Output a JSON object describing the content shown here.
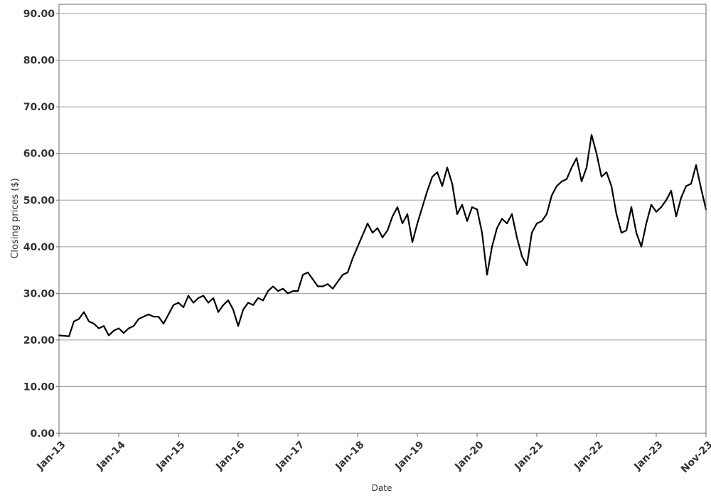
{
  "chart_data": {
    "type": "line",
    "title": "",
    "xlabel": "Date",
    "ylabel": "Closing prices ($)",
    "ylim": [
      0,
      92
    ],
    "xlim": [
      "2013-01",
      "2023-11"
    ],
    "grid": true,
    "y_ticks": [
      {
        "value": 0,
        "label": "0.00"
      },
      {
        "value": 10,
        "label": "10.00"
      },
      {
        "value": 20,
        "label": "20.00"
      },
      {
        "value": 30,
        "label": "30.00"
      },
      {
        "value": 40,
        "label": "40.00"
      },
      {
        "value": 50,
        "label": "50.00"
      },
      {
        "value": 60,
        "label": "60.00"
      },
      {
        "value": 70,
        "label": "70.00"
      },
      {
        "value": 80,
        "label": "80.00"
      },
      {
        "value": 90,
        "label": "90.00"
      }
    ],
    "x_ticks": [
      {
        "value": "2013-01",
        "label": "Jan-13"
      },
      {
        "value": "2014-01",
        "label": "Jan-14"
      },
      {
        "value": "2015-01",
        "label": "Jan-15"
      },
      {
        "value": "2016-01",
        "label": "Jan-16"
      },
      {
        "value": "2017-01",
        "label": "Jan-17"
      },
      {
        "value": "2018-01",
        "label": "Jan-18"
      },
      {
        "value": "2019-01",
        "label": "Jan-19"
      },
      {
        "value": "2020-01",
        "label": "Jan-20"
      },
      {
        "value": "2021-01",
        "label": "Jan-21"
      },
      {
        "value": "2022-01",
        "label": "Jan-22"
      },
      {
        "value": "2023-01",
        "label": "Jan-23"
      },
      {
        "value": "2023-11",
        "label": "Nov-23"
      }
    ],
    "series": [
      {
        "color": "#000000",
        "points": [
          [
            "2013-01",
            21.0
          ],
          [
            "2013-03",
            20.8
          ],
          [
            "2013-04",
            24.0
          ],
          [
            "2013-05",
            24.5
          ],
          [
            "2013-06",
            26.0
          ],
          [
            "2013-07",
            24.0
          ],
          [
            "2013-08",
            23.5
          ],
          [
            "2013-09",
            22.5
          ],
          [
            "2013-10",
            23.0
          ],
          [
            "2013-11",
            21.0
          ],
          [
            "2013-12",
            22.0
          ],
          [
            "2014-01",
            22.5
          ],
          [
            "2014-02",
            21.5
          ],
          [
            "2014-03",
            22.5
          ],
          [
            "2014-04",
            23.0
          ],
          [
            "2014-05",
            24.5
          ],
          [
            "2014-06",
            25.0
          ],
          [
            "2014-07",
            25.5
          ],
          [
            "2014-08",
            25.0
          ],
          [
            "2014-09",
            25.0
          ],
          [
            "2014-10",
            23.5
          ],
          [
            "2014-11",
            25.5
          ],
          [
            "2014-12",
            27.5
          ],
          [
            "2015-01",
            28.0
          ],
          [
            "2015-02",
            27.0
          ],
          [
            "2015-03",
            29.5
          ],
          [
            "2015-04",
            28.0
          ],
          [
            "2015-05",
            29.0
          ],
          [
            "2015-06",
            29.5
          ],
          [
            "2015-07",
            28.0
          ],
          [
            "2015-08",
            29.0
          ],
          [
            "2015-09",
            26.0
          ],
          [
            "2015-10",
            27.5
          ],
          [
            "2015-11",
            28.5
          ],
          [
            "2015-12",
            26.5
          ],
          [
            "2016-01",
            23.0
          ],
          [
            "2016-02",
            26.5
          ],
          [
            "2016-03",
            28.0
          ],
          [
            "2016-04",
            27.5
          ],
          [
            "2016-05",
            29.0
          ],
          [
            "2016-06",
            28.5
          ],
          [
            "2016-07",
            30.5
          ],
          [
            "2016-08",
            31.5
          ],
          [
            "2016-09",
            30.5
          ],
          [
            "2016-10",
            31.0
          ],
          [
            "2016-11",
            30.0
          ],
          [
            "2016-12",
            30.5
          ],
          [
            "2017-01",
            30.5
          ],
          [
            "2017-02",
            34.0
          ],
          [
            "2017-03",
            34.5
          ],
          [
            "2017-04",
            33.0
          ],
          [
            "2017-05",
            31.5
          ],
          [
            "2017-06",
            31.5
          ],
          [
            "2017-07",
            32.0
          ],
          [
            "2017-08",
            31.0
          ],
          [
            "2017-09",
            32.5
          ],
          [
            "2017-10",
            34.0
          ],
          [
            "2017-11",
            34.5
          ],
          [
            "2017-12",
            37.5
          ],
          [
            "2018-01",
            40.0
          ],
          [
            "2018-02",
            42.5
          ],
          [
            "2018-03",
            45.0
          ],
          [
            "2018-04",
            43.0
          ],
          [
            "2018-05",
            44.0
          ],
          [
            "2018-06",
            42.0
          ],
          [
            "2018-07",
            43.5
          ],
          [
            "2018-08",
            46.5
          ],
          [
            "2018-09",
            48.5
          ],
          [
            "2018-10",
            45.0
          ],
          [
            "2018-11",
            47.0
          ],
          [
            "2018-12",
            41.0
          ],
          [
            "2019-01",
            45.0
          ],
          [
            "2019-02",
            48.5
          ],
          [
            "2019-03",
            52.0
          ],
          [
            "2019-04",
            55.0
          ],
          [
            "2019-05",
            56.0
          ],
          [
            "2019-06",
            53.0
          ],
          [
            "2019-07",
            57.0
          ],
          [
            "2019-08",
            53.5
          ],
          [
            "2019-09",
            47.0
          ],
          [
            "2019-10",
            49.0
          ],
          [
            "2019-11",
            45.5
          ],
          [
            "2019-12",
            48.5
          ],
          [
            "2020-01",
            48.0
          ],
          [
            "2020-02",
            43.0
          ],
          [
            "2020-03",
            34.0
          ],
          [
            "2020-04",
            40.0
          ],
          [
            "2020-05",
            44.0
          ],
          [
            "2020-06",
            46.0
          ],
          [
            "2020-07",
            45.0
          ],
          [
            "2020-08",
            47.0
          ],
          [
            "2020-09",
            42.0
          ],
          [
            "2020-10",
            38.0
          ],
          [
            "2020-11",
            36.0
          ],
          [
            "2020-12",
            43.0
          ],
          [
            "2021-01",
            45.0
          ],
          [
            "2021-02",
            45.5
          ],
          [
            "2021-03",
            47.0
          ],
          [
            "2021-04",
            51.0
          ],
          [
            "2021-05",
            53.0
          ],
          [
            "2021-06",
            54.0
          ],
          [
            "2021-07",
            54.5
          ],
          [
            "2021-08",
            57.0
          ],
          [
            "2021-09",
            59.0
          ],
          [
            "2021-10",
            54.0
          ],
          [
            "2021-11",
            57.0
          ],
          [
            "2021-12",
            64.0
          ],
          [
            "2022-01",
            60.0
          ],
          [
            "2022-02",
            55.0
          ],
          [
            "2022-03",
            56.0
          ],
          [
            "2022-04",
            53.0
          ],
          [
            "2022-05",
            47.0
          ],
          [
            "2022-06",
            43.0
          ],
          [
            "2022-07",
            43.5
          ],
          [
            "2022-08",
            48.5
          ],
          [
            "2022-09",
            43.0
          ],
          [
            "2022-10",
            40.0
          ],
          [
            "2022-11",
            45.0
          ],
          [
            "2022-12",
            49.0
          ],
          [
            "2023-01",
            47.5
          ],
          [
            "2023-02",
            48.5
          ],
          [
            "2023-03",
            50.0
          ],
          [
            "2023-04",
            52.0
          ],
          [
            "2023-05",
            46.5
          ],
          [
            "2023-06",
            50.5
          ],
          [
            "2023-07",
            53.0
          ],
          [
            "2023-08",
            53.5
          ],
          [
            "2023-09",
            57.5
          ],
          [
            "2023-10",
            52.5
          ],
          [
            "2023-11",
            48.0
          ]
        ]
      }
    ]
  }
}
